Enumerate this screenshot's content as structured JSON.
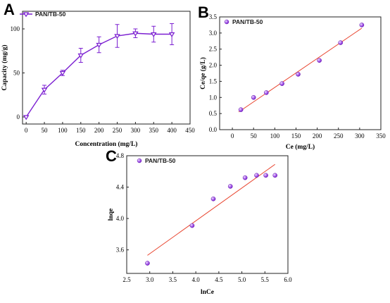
{
  "colors": {
    "series": "#7b1fd1",
    "marker_light": "#b77af0",
    "fit": "#e8422c",
    "frame": "#222222"
  },
  "chart_data": [
    {
      "panel_letter": "A",
      "type": "line",
      "legend": "PAN/TB-50",
      "legend_position": "top-left",
      "xlabel": "Concentration (mg/L)",
      "ylabel": "Capacity (mg/g)",
      "xlim": [
        -10,
        450
      ],
      "ylim": [
        -8,
        120
      ],
      "xticks": [
        0,
        50,
        100,
        150,
        200,
        250,
        300,
        350,
        400,
        450
      ],
      "yticks": [
        0,
        50,
        100
      ],
      "grid": false,
      "series": [
        {
          "name": "PAN/TB-50",
          "x": [
            0,
            50,
            100,
            150,
            200,
            250,
            300,
            350,
            400
          ],
          "y": [
            0,
            31,
            50,
            70,
            82,
            92,
            95,
            94,
            94
          ],
          "error": [
            0,
            5,
            3,
            8,
            9,
            13,
            5,
            9,
            12
          ]
        }
      ]
    },
    {
      "panel_letter": "B",
      "type": "scatter",
      "legend": "PAN/TB-50",
      "legend_position": "top-left",
      "xlabel": "Ce (mg/L)",
      "ylabel": "Ce/qe (g/L)",
      "xlim": [
        -30,
        350
      ],
      "ylim": [
        0,
        3.5
      ],
      "xticks": [
        0,
        50,
        100,
        150,
        200,
        250,
        300,
        350
      ],
      "yticks": [
        0.0,
        0.5,
        1.0,
        1.5,
        2.0,
        2.5,
        3.0,
        3.5
      ],
      "grid": false,
      "series": [
        {
          "name": "PAN/TB-50",
          "x": [
            20,
            50,
            80,
            117,
            155,
            205,
            255,
            305
          ],
          "y": [
            0.62,
            1.0,
            1.15,
            1.43,
            1.72,
            2.15,
            2.7,
            3.25
          ]
        }
      ],
      "fit_line": {
        "x": [
          15,
          305
        ],
        "y": [
          0.55,
          3.15
        ]
      }
    },
    {
      "panel_letter": "C",
      "type": "scatter",
      "legend": "PAN/TB-50",
      "legend_position": "top-left",
      "xlabel": "lnCe",
      "ylabel": "lnqe",
      "xlim": [
        2.5,
        6.0
      ],
      "ylim": [
        3.3,
        4.8
      ],
      "xticks": [
        2.5,
        3.0,
        3.5,
        4.0,
        4.5,
        5.0,
        5.5,
        6.0
      ],
      "yticks": [
        3.6,
        4.0,
        4.4,
        4.8
      ],
      "grid": false,
      "series": [
        {
          "name": "PAN/TB-50",
          "x": [
            2.95,
            3.92,
            4.38,
            4.75,
            5.07,
            5.32,
            5.52,
            5.72
          ],
          "y": [
            3.43,
            3.91,
            4.25,
            4.41,
            4.52,
            4.55,
            4.55,
            4.55
          ]
        }
      ],
      "fit_line": {
        "x": [
          2.95,
          5.72
        ],
        "y": [
          3.53,
          4.69
        ]
      }
    }
  ]
}
